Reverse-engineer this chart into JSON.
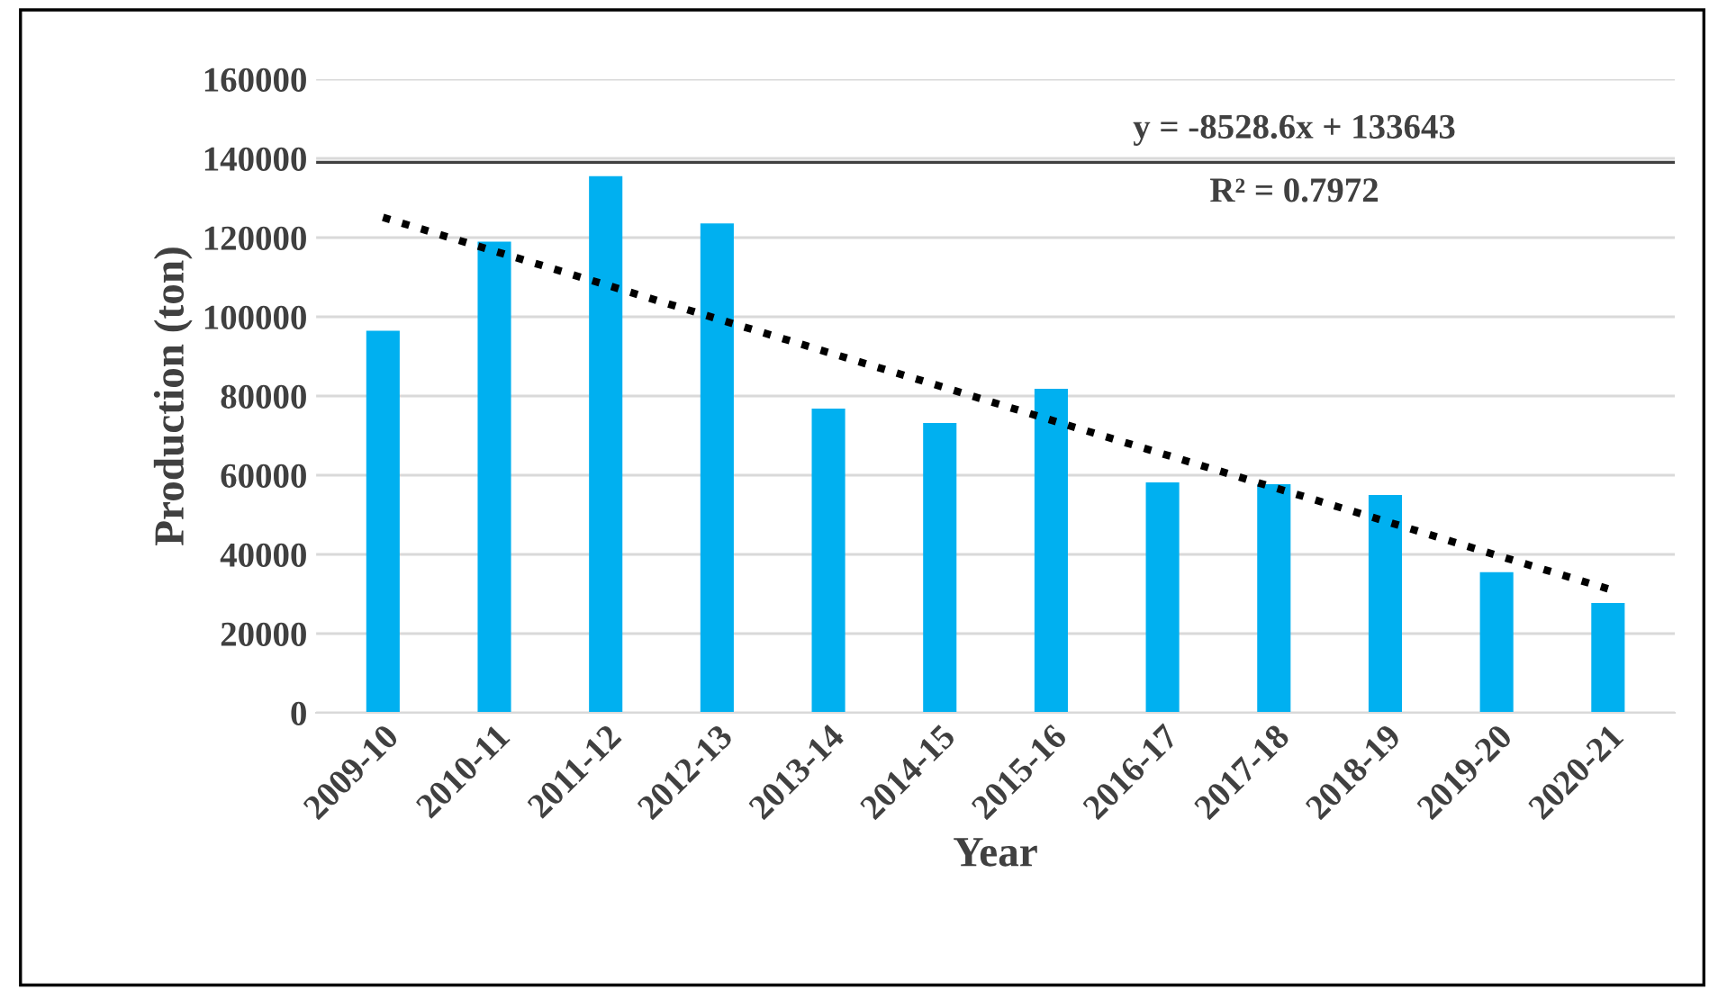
{
  "chart_data": {
    "type": "bar",
    "xlabel": "Year",
    "ylabel": "Production (ton)",
    "categories": [
      "2009-10",
      "2010-11",
      "2011-12",
      "2012-13",
      "2013-14",
      "2014-15",
      "2015-16",
      "2016-17",
      "2017-18",
      "2018-19",
      "2019-20",
      "2020-21"
    ],
    "series": [
      {
        "color": "#00b0f0",
        "values": [
          96500,
          119000,
          135500,
          123600,
          76800,
          73200,
          81800,
          58200,
          57700,
          55000,
          35500,
          27700
        ]
      },
      {
        "type": "line",
        "color": "#000000",
        "line_style": "dotted",
        "values": [
          125100,
          116600,
          108100,
          99500,
          91000,
          82500,
          73900,
          65400,
          56900,
          48400,
          39800,
          31300
        ]
      }
    ],
    "ylim": [
      0,
      160000
    ],
    "yticks": [
      0,
      20000,
      40000,
      60000,
      80000,
      100000,
      120000,
      140000,
      160000
    ],
    "grid": "y",
    "legend": false,
    "ref_lines": [
      {
        "axis": "y",
        "value": 139000,
        "color": "#404040"
      }
    ],
    "annotations": [
      "y = -8528.6x + 133643",
      "R² = 0.7972"
    ]
  }
}
